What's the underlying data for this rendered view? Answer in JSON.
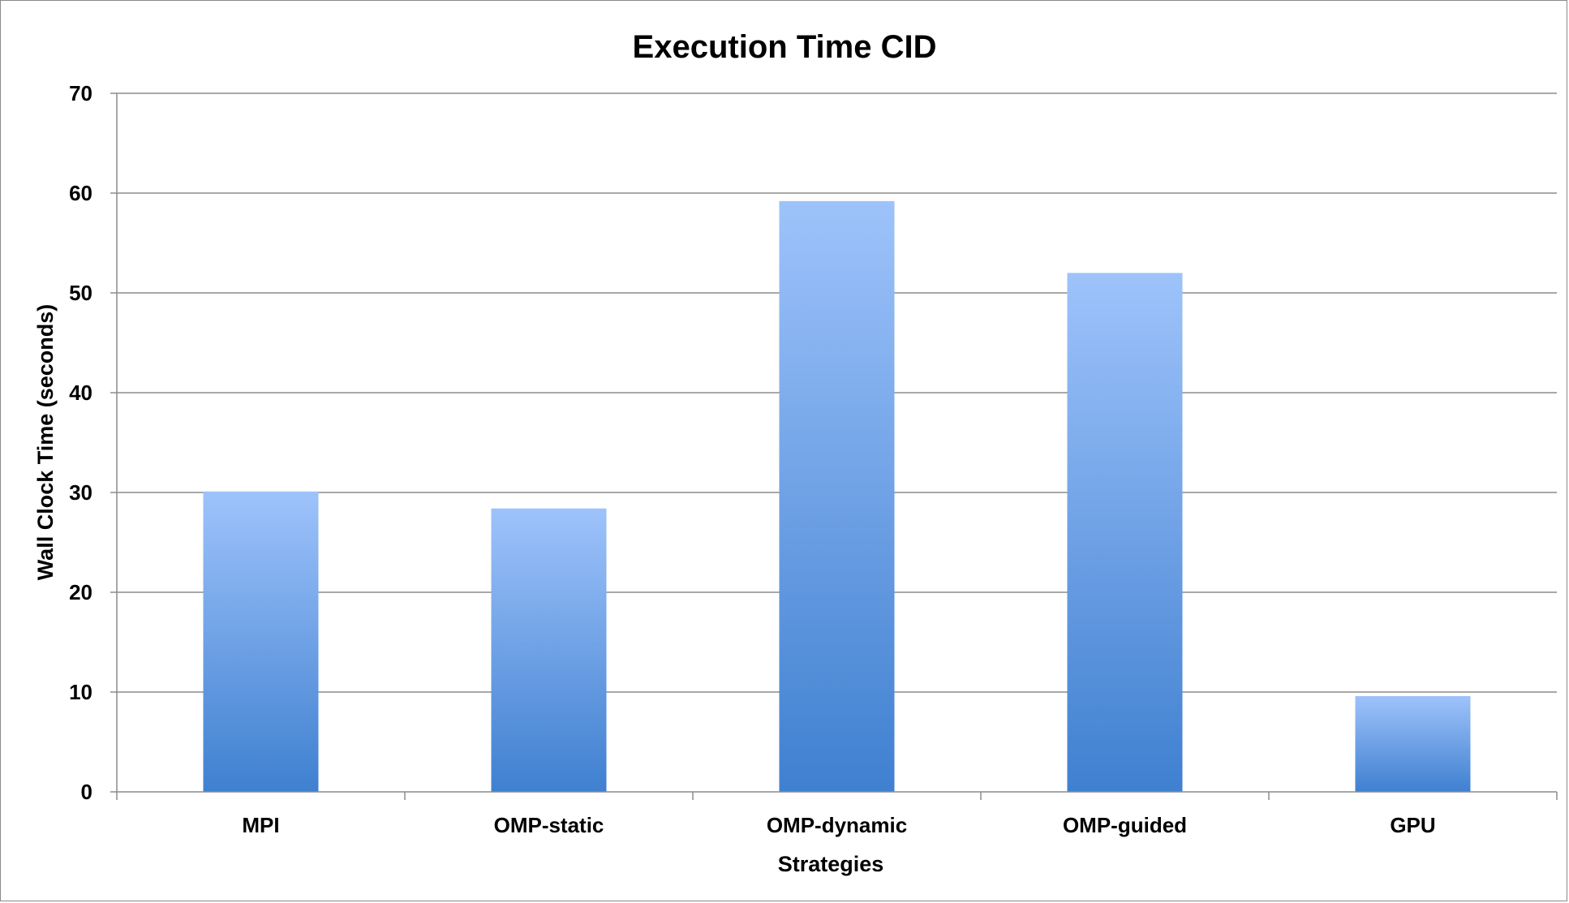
{
  "chart_data": {
    "type": "bar",
    "title": "Execution Time CID",
    "xlabel": "Strategies",
    "ylabel": "Wall Clock Time (seconds)",
    "categories": [
      "MPI",
      "OMP-static",
      "OMP-dynamic",
      "OMP-guided",
      "GPU"
    ],
    "values": [
      30.1,
      28.4,
      59.2,
      52.0,
      9.6
    ],
    "ylim": [
      0,
      70
    ],
    "yticks": [
      0,
      10,
      20,
      30,
      40,
      50,
      60,
      70
    ],
    "grid": true,
    "legend": "none",
    "colors": {
      "bar_top": "#9ec3fb",
      "bar_bottom": "#3f80d0",
      "grid": "#8c8c8c"
    }
  }
}
